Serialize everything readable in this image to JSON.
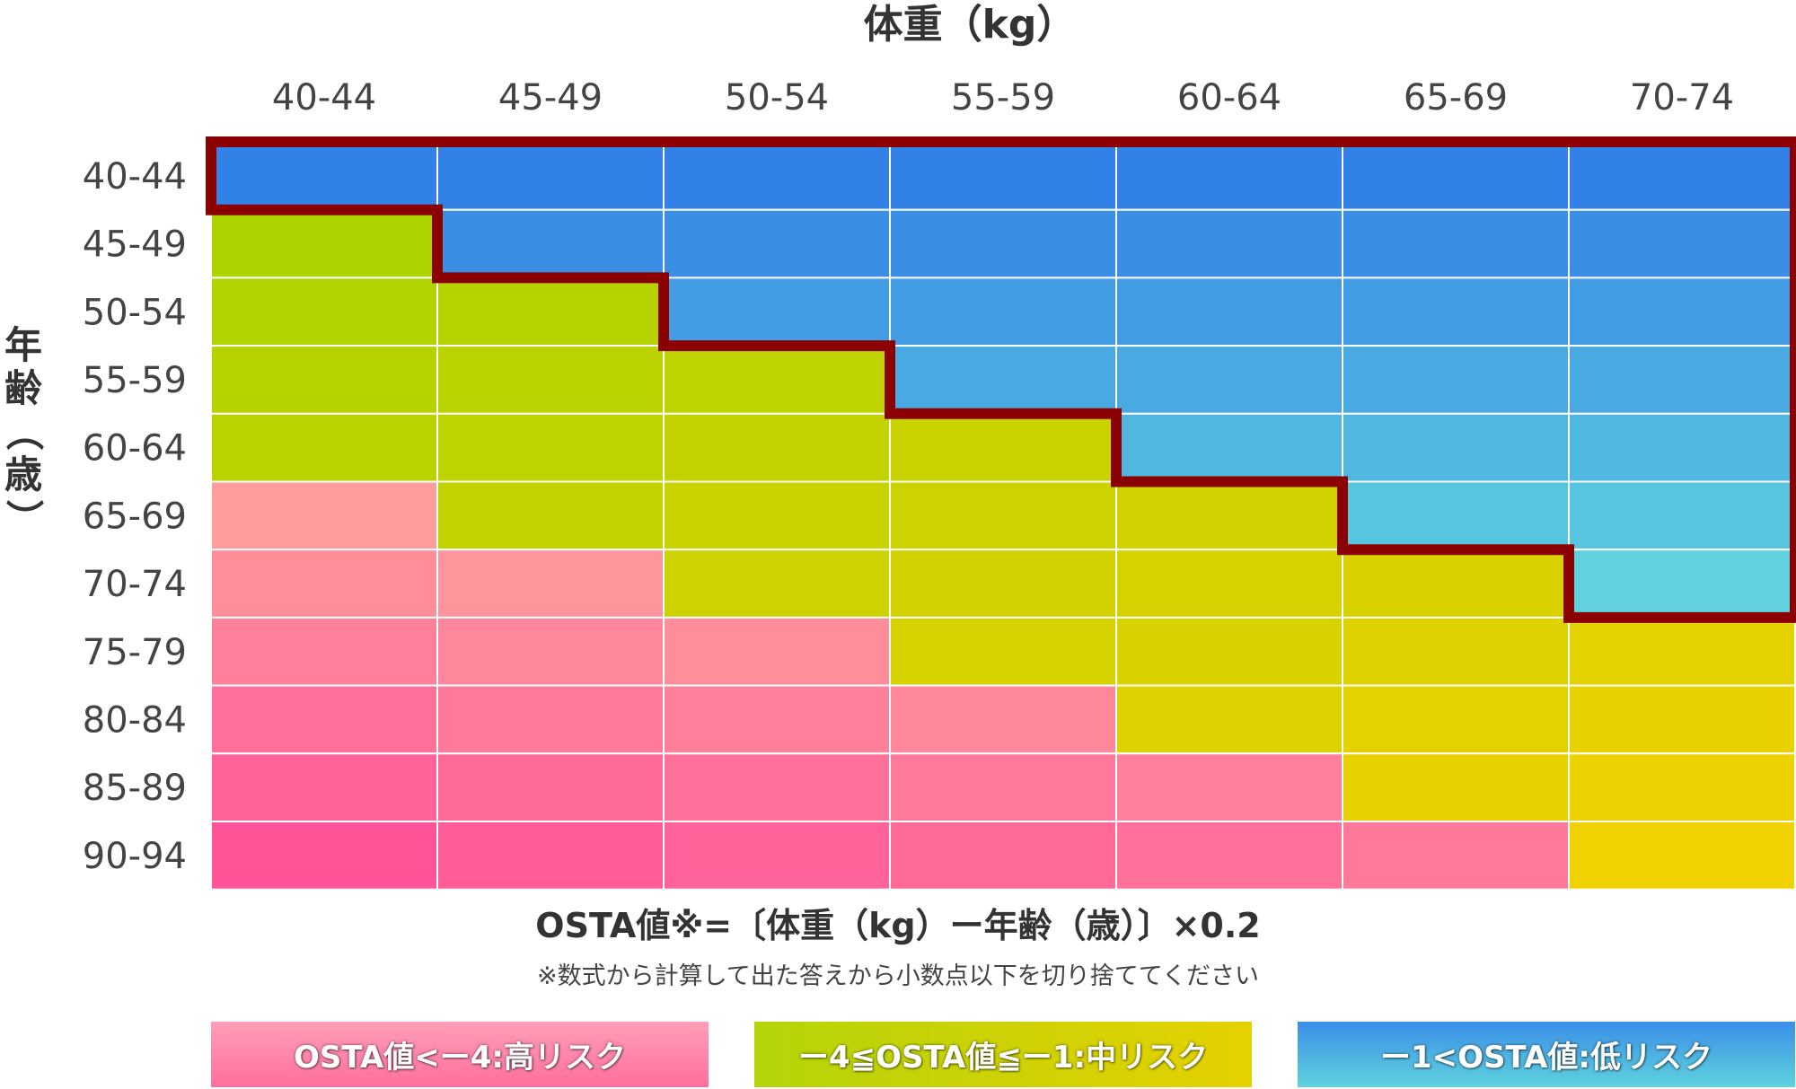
{
  "chart_data": {
    "type": "heatmap",
    "xlabel": "体重（kg）",
    "ylabel": "年齢（歳）",
    "x_categories": [
      "40-44",
      "45-49",
      "50-54",
      "55-59",
      "60-64",
      "65-69",
      "70-74"
    ],
    "y_categories": [
      "40-44",
      "45-49",
      "50-54",
      "55-59",
      "60-64",
      "65-69",
      "70-74",
      "75-79",
      "80-84",
      "85-89",
      "90-94"
    ],
    "risk_levels": {
      "high": "OSTA値<ー4:高リスク",
      "mid": "ー4≦OSTA値≦ー1:中リスク",
      "low": "ー1<OSTA値:低リスク"
    },
    "cells": [
      [
        "low",
        "low",
        "low",
        "low",
        "low",
        "low",
        "low"
      ],
      [
        "mid",
        "low",
        "low",
        "low",
        "low",
        "low",
        "low"
      ],
      [
        "mid",
        "mid",
        "low",
        "low",
        "low",
        "low",
        "low"
      ],
      [
        "mid",
        "mid",
        "mid",
        "low",
        "low",
        "low",
        "low"
      ],
      [
        "mid",
        "mid",
        "mid",
        "mid",
        "low",
        "low",
        "low"
      ],
      [
        "high",
        "mid",
        "mid",
        "mid",
        "mid",
        "low",
        "low"
      ],
      [
        "high",
        "high",
        "mid",
        "mid",
        "mid",
        "mid",
        "low"
      ],
      [
        "high",
        "high",
        "high",
        "mid",
        "mid",
        "mid",
        "mid"
      ],
      [
        "high",
        "high",
        "high",
        "high",
        "mid",
        "mid",
        "mid"
      ],
      [
        "high",
        "high",
        "high",
        "high",
        "high",
        "mid",
        "mid"
      ],
      [
        "high",
        "high",
        "high",
        "high",
        "high",
        "high",
        "mid"
      ]
    ],
    "colors": {
      "low_start": "#3281e6",
      "low_end": "#5fd2de",
      "mid_start": "#a8d300",
      "mid_end": "#f0d200",
      "high_start": "#ff9c9c",
      "high_end": "#ff5598",
      "boundary": "#8b0000"
    },
    "grid": true
  },
  "formula": "OSTA値※=〔体重（kg）ー年齢（歳）〕×0.2",
  "note": "※数式から計算して出た答えから小数点以下を切り捨ててください",
  "legend": {
    "high": "OSTA値<ー4:高リスク",
    "mid": "ー4≦OSTA値≦ー1:中リスク",
    "low": "ー1<OSTA値:低リスク"
  }
}
